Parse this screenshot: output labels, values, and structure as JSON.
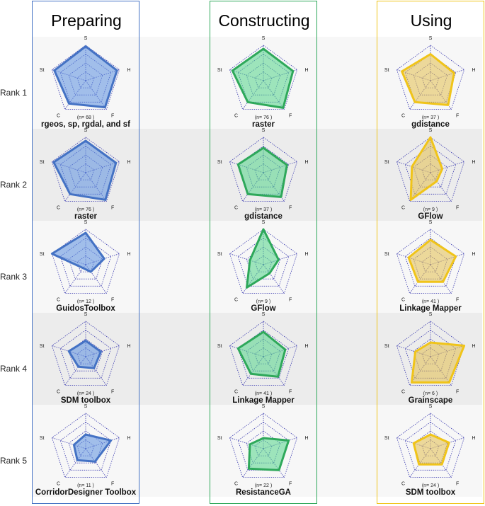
{
  "columns": [
    {
      "title": "Preparing",
      "color": "#4472c4",
      "fill": "#5b8fe0"
    },
    {
      "title": "Constructing",
      "color": "#2ea85a",
      "fill": "#54d68a"
    },
    {
      "title": "Using",
      "color": "#f0c419",
      "fill": "#e3c04f"
    }
  ],
  "ranks": [
    "Rank 1",
    "Rank 2",
    "Rank 3",
    "Rank 4",
    "Rank 5"
  ],
  "axis_labels": [
    "S",
    "H",
    "F",
    "C",
    "St"
  ],
  "chart_data": {
    "type": "radar",
    "axes": [
      "S",
      "H",
      "F",
      "C",
      "St"
    ],
    "range": [
      0,
      1
    ],
    "grid_levels": 4,
    "panels": [
      {
        "column": "Preparing",
        "rank": 1,
        "label": "rgeos, sp, rgdal, and sf",
        "n": "(n= 68 )",
        "values": [
          0.97,
          0.93,
          0.93,
          0.8,
          0.93
        ]
      },
      {
        "column": "Preparing",
        "rank": 2,
        "label": "raster",
        "n": "(n= 76 )",
        "values": [
          0.9,
          0.9,
          0.95,
          0.75,
          0.95
        ]
      },
      {
        "column": "Preparing",
        "rank": 3,
        "label": "GuidosToolbox",
        "n": "(n= 12 )",
        "values": [
          0.9,
          0.55,
          0.25,
          0.12,
          1.0
        ]
      },
      {
        "column": "Preparing",
        "rank": 4,
        "label": "SDM toolbox",
        "n": "(n= 24 )",
        "values": [
          0.45,
          0.45,
          0.4,
          0.35,
          0.5
        ]
      },
      {
        "column": "Preparing",
        "rank": 5,
        "label": "CorridorDesigner Toolbox",
        "n": "(n= 11 )",
        "values": [
          0.4,
          0.75,
          0.45,
          0.4,
          0.35
        ]
      },
      {
        "column": "Constructing",
        "rank": 1,
        "label": "raster",
        "n": "(n= 76 )",
        "values": [
          0.9,
          0.88,
          0.95,
          0.75,
          0.92
        ]
      },
      {
        "column": "Constructing",
        "rank": 2,
        "label": "gdistance",
        "n": "(n= 37 )",
        "values": [
          0.7,
          0.7,
          0.85,
          0.75,
          0.75
        ]
      },
      {
        "column": "Constructing",
        "rank": 3,
        "label": "GFlow",
        "n": "(n= 9 )",
        "values": [
          1.0,
          0.45,
          0.3,
          0.8,
          0.4
        ]
      },
      {
        "column": "Constructing",
        "rank": 4,
        "label": "Linkage Mapper",
        "n": "(n= 41 )",
        "values": [
          0.7,
          0.65,
          0.7,
          0.6,
          0.75
        ]
      },
      {
        "column": "Constructing",
        "rank": 5,
        "label": "ResistanceGA",
        "n": "(n= 22 )",
        "values": [
          0.3,
          0.75,
          0.75,
          0.7,
          0.4
        ]
      },
      {
        "column": "Using",
        "rank": 1,
        "label": "gdistance",
        "n": "(n= 37 )",
        "values": [
          0.75,
          0.7,
          0.85,
          0.75,
          0.85
        ]
      },
      {
        "column": "Using",
        "rank": 2,
        "label": "GFlow",
        "n": "(n= 9 )",
        "values": [
          1.0,
          0.35,
          0.3,
          0.95,
          0.55
        ]
      },
      {
        "column": "Using",
        "rank": 3,
        "label": "Linkage Mapper",
        "n": "(n= 41 )",
        "values": [
          0.7,
          0.75,
          0.6,
          0.6,
          0.65
        ]
      },
      {
        "column": "Using",
        "rank": 4,
        "label": "Grainscape",
        "n": "(n= 6 )",
        "values": [
          0.4,
          1.0,
          0.9,
          0.9,
          0.45
        ]
      },
      {
        "column": "Using",
        "rank": 5,
        "label": "SDM toolbox",
        "n": "(n= 24 )",
        "values": [
          0.4,
          0.55,
          0.55,
          0.55,
          0.5
        ]
      }
    ]
  }
}
